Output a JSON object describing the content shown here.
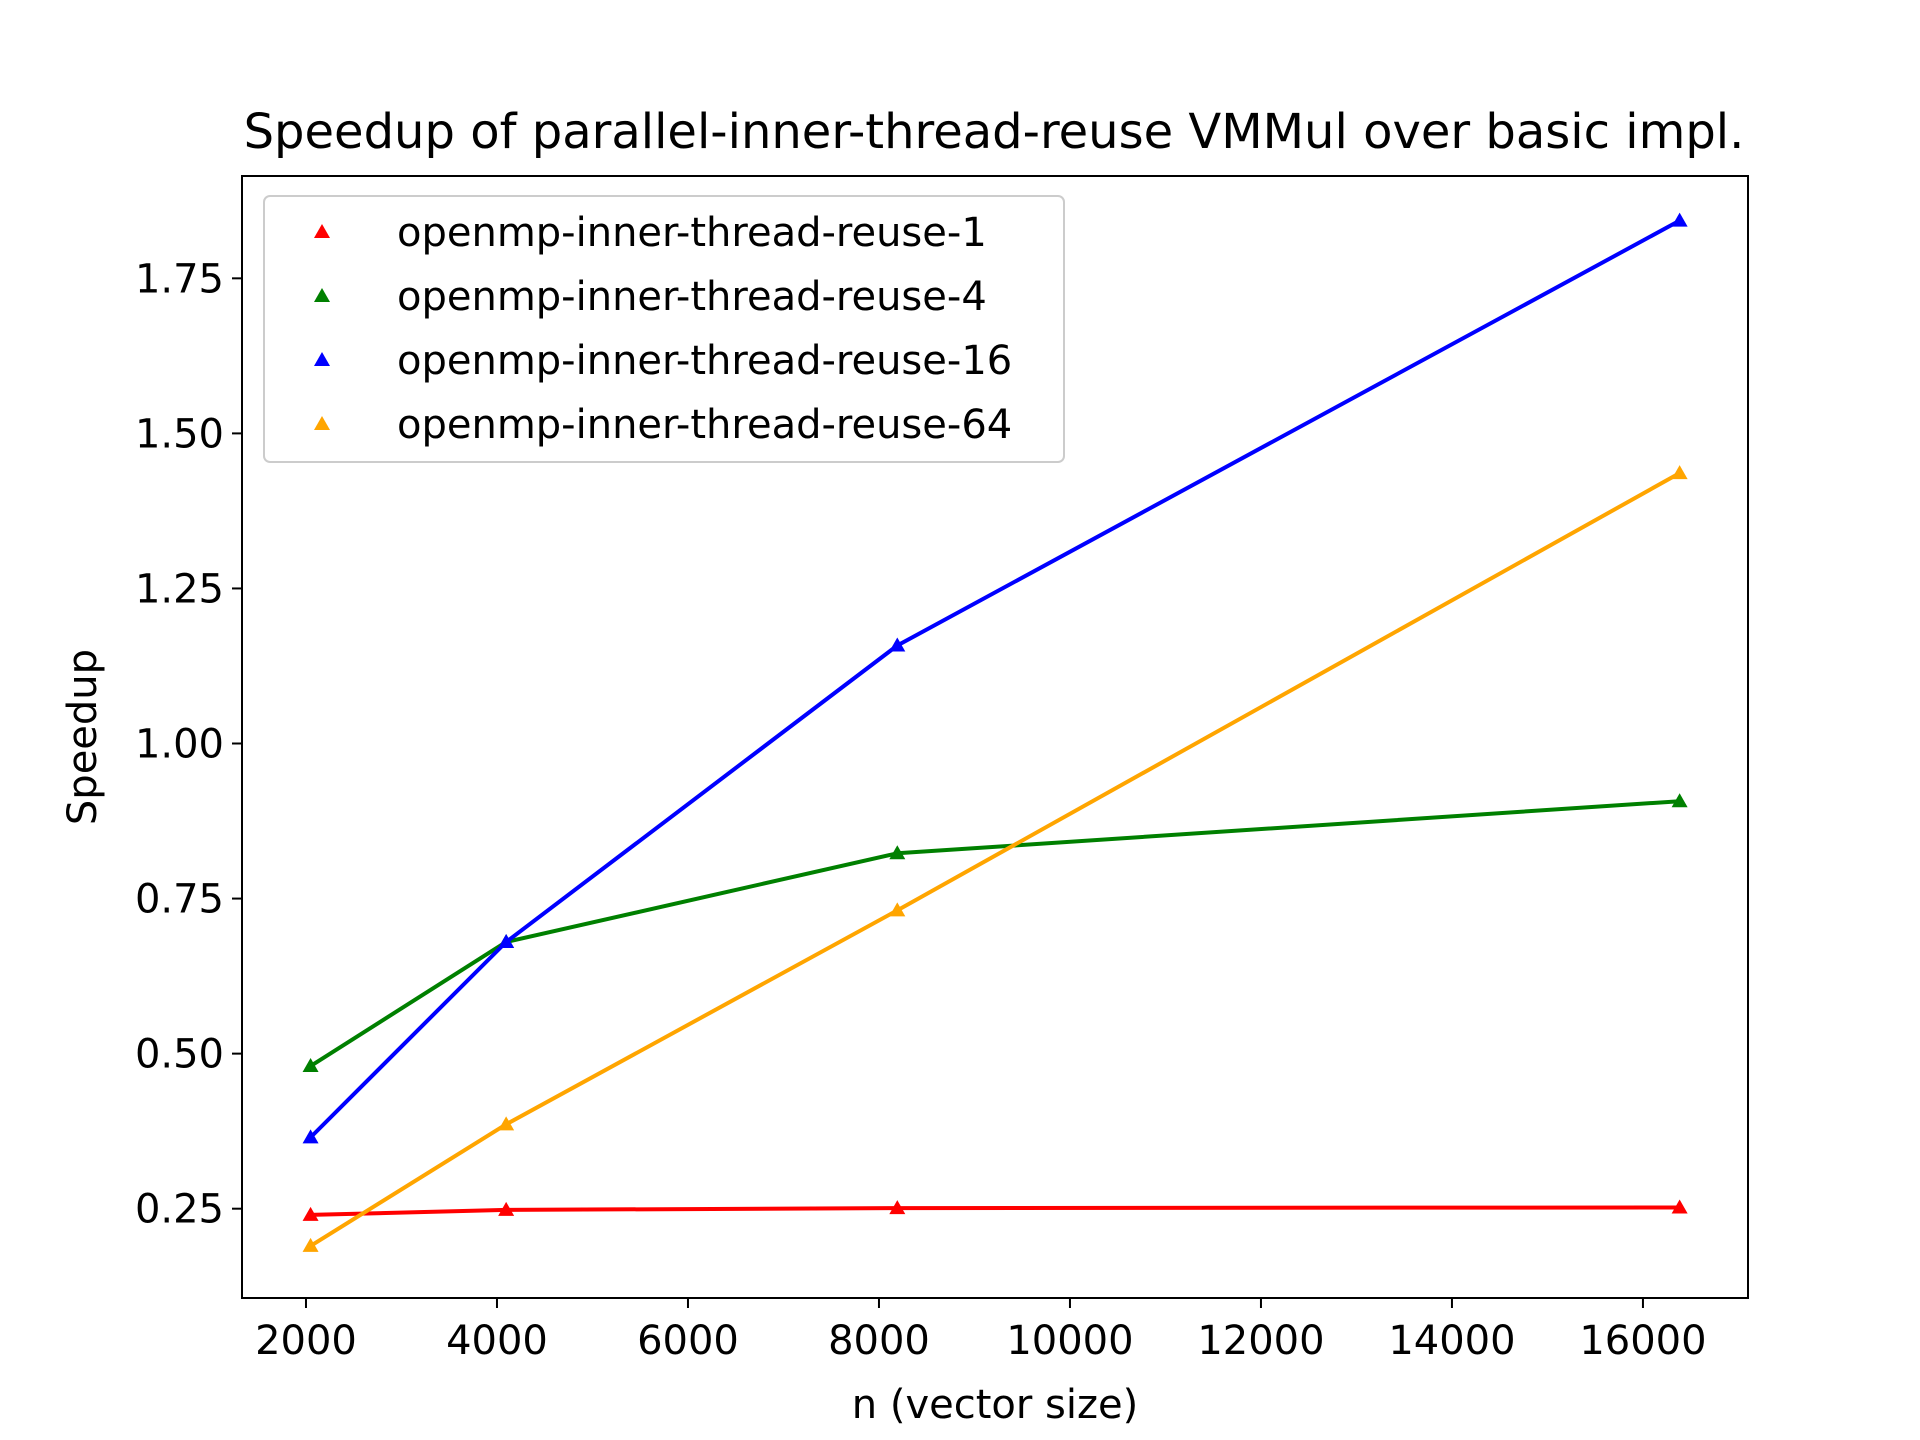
{
  "chart_data": {
    "type": "line",
    "title": "Speedup of parallel-inner-thread-reuse VMMul over basic impl.",
    "xlabel": "n (vector size)",
    "ylabel": "Speedup",
    "x": [
      2048,
      4096,
      8192,
      16384
    ],
    "xlim": [
      1330,
      17100
    ],
    "ylim": [
      0.106,
      1.915
    ],
    "xticks": [
      2000,
      4000,
      6000,
      8000,
      10000,
      12000,
      14000,
      16000
    ],
    "yticks": [
      0.25,
      0.5,
      0.75,
      1.0,
      1.25,
      1.5,
      1.75
    ],
    "xtick_labels": [
      "2000",
      "4000",
      "6000",
      "8000",
      "10000",
      "12000",
      "14000",
      "16000"
    ],
    "ytick_labels": [
      "0.25",
      "0.50",
      "0.75",
      "1.00",
      "1.25",
      "1.50",
      "1.75"
    ],
    "legend_position": "top-left",
    "marker": "triangle",
    "grid": false,
    "series": [
      {
        "name": "openmp-inner-thread-reuse-1",
        "color": "#ff0000",
        "values": [
          0.24,
          0.248,
          0.251,
          0.252
        ]
      },
      {
        "name": "openmp-inner-thread-reuse-4",
        "color": "#008000",
        "values": [
          0.48,
          0.68,
          0.823,
          0.907
        ]
      },
      {
        "name": "openmp-inner-thread-reuse-16",
        "color": "#0000ff",
        "values": [
          0.365,
          0.68,
          1.158,
          1.843
        ]
      },
      {
        "name": "openmp-inner-thread-reuse-64",
        "color": "#ffa500",
        "values": [
          0.19,
          0.386,
          0.731,
          1.436
        ]
      }
    ]
  }
}
